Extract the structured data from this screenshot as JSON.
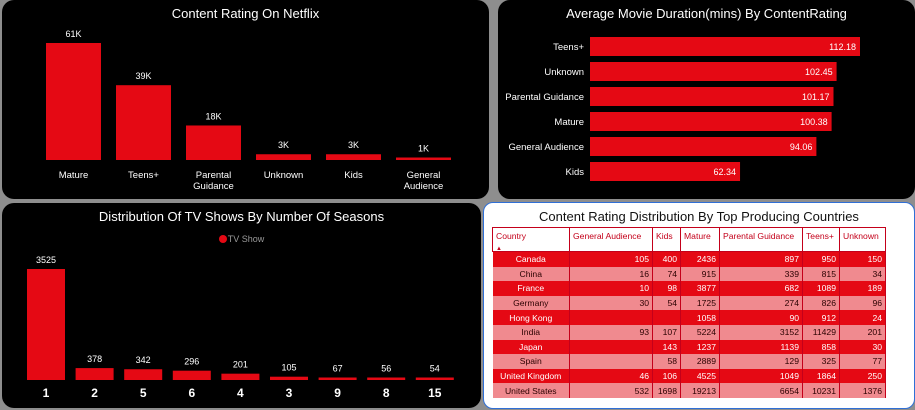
{
  "panels": {
    "rating": {
      "title": "Content Rating On Netflix",
      "chart_data": {
        "type": "bar",
        "categories": [
          "Mature",
          "Teens+",
          "Parental Guidance",
          "Unknown",
          "Kids",
          "General Audience"
        ],
        "category_lines": [
          [
            "Mature"
          ],
          [
            "Teens+"
          ],
          [
            "Parental",
            "Guidance"
          ],
          [
            "Unknown"
          ],
          [
            "Kids"
          ],
          [
            "General",
            "Audience"
          ]
        ],
        "values": [
          61000,
          39000,
          18000,
          3000,
          3000,
          1000
        ],
        "data_labels": [
          "61K",
          "39K",
          "18K",
          "3K",
          "3K",
          "1K"
        ],
        "color": "#e50914"
      }
    },
    "duration": {
      "title": "Average Movie Duration(mins) By ContentRating",
      "chart_data": {
        "type": "bar",
        "orientation": "horizontal",
        "categories": [
          "Teens+",
          "Unknown",
          "Parental Guidance",
          "Mature",
          "General Audience",
          "Kids"
        ],
        "values": [
          112.18,
          102.45,
          101.17,
          100.38,
          94.06,
          62.34
        ],
        "data_labels": [
          "112.18",
          "102.45",
          "101.17",
          "100.38",
          "94.06",
          "62.34"
        ],
        "color": "#e50914"
      }
    },
    "seasons": {
      "title": "Distribution Of TV Shows By Number Of Seasons",
      "legend": "TV Show",
      "chart_data": {
        "type": "bar",
        "categories": [
          "1",
          "2",
          "5",
          "6",
          "4",
          "3",
          "9",
          "8",
          "15"
        ],
        "series": [
          {
            "name": "TV Show",
            "values": [
              3525,
              378,
              342,
              296,
              201,
              105,
              67,
              56,
              54
            ]
          }
        ],
        "color": "#e50914"
      }
    },
    "countries": {
      "title": "Content Rating Distribution By Top Producing Countries",
      "sort_indicator": "▲",
      "columns": [
        "Country",
        "General Audience",
        "Kids",
        "Mature",
        "Parental Guidance",
        "Teens+",
        "Unknown"
      ],
      "rows": [
        [
          "Canada",
          "105",
          "400",
          "2436",
          "897",
          "950",
          "150"
        ],
        [
          "China",
          "16",
          "74",
          "915",
          "339",
          "815",
          "34"
        ],
        [
          "France",
          "10",
          "98",
          "3877",
          "682",
          "1089",
          "189"
        ],
        [
          "Germany",
          "30",
          "54",
          "1725",
          "274",
          "826",
          "96"
        ],
        [
          "Hong Kong",
          "",
          "",
          "1058",
          "90",
          "912",
          "24"
        ],
        [
          "India",
          "93",
          "107",
          "5224",
          "3152",
          "11429",
          "201"
        ],
        [
          "Japan",
          "",
          "143",
          "1237",
          "1139",
          "858",
          "30"
        ],
        [
          "Spain",
          "",
          "58",
          "2889",
          "129",
          "325",
          "77"
        ],
        [
          "United Kingdom",
          "46",
          "106",
          "4525",
          "1049",
          "1864",
          "250"
        ],
        [
          "United States",
          "532",
          "1698",
          "19213",
          "6654",
          "10231",
          "1376"
        ]
      ]
    }
  }
}
